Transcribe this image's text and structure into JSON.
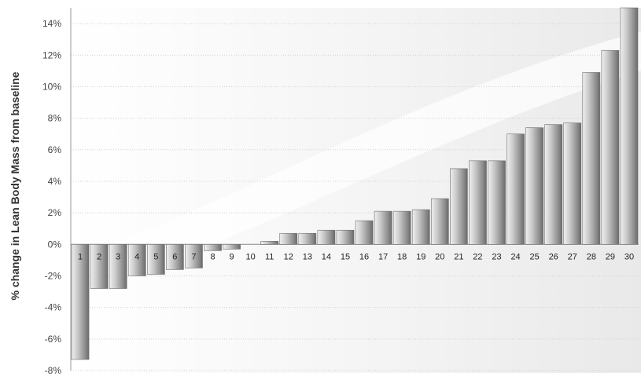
{
  "chart_data": {
    "type": "bar",
    "title": "",
    "xlabel": "",
    "ylabel": "% change in Lean Body Mass from baseline",
    "ylim": [
      -8,
      15
    ],
    "yticks": [
      -8,
      -6,
      -4,
      -2,
      0,
      2,
      4,
      6,
      8,
      10,
      12,
      14
    ],
    "ytick_labels": [
      "-8%",
      "-6%",
      "-4%",
      "-2%",
      "0%",
      "2%",
      "4%",
      "6%",
      "8%",
      "10%",
      "12%",
      "14%"
    ],
    "categories": [
      "1",
      "2",
      "3",
      "4",
      "5",
      "6",
      "7",
      "8",
      "9",
      "10",
      "11",
      "12",
      "13",
      "14",
      "15",
      "16",
      "17",
      "18",
      "19",
      "20",
      "21",
      "22",
      "23",
      "24",
      "25",
      "26",
      "27",
      "28",
      "29",
      "30"
    ],
    "values": [
      -7.3,
      -2.8,
      -2.8,
      -2.0,
      -1.9,
      -1.6,
      -1.5,
      -0.4,
      -0.3,
      0.0,
      0.2,
      0.7,
      0.7,
      0.9,
      0.9,
      1.5,
      2.1,
      2.1,
      2.2,
      2.9,
      4.8,
      5.3,
      5.3,
      7.0,
      7.4,
      7.6,
      7.7,
      10.9,
      12.3,
      15.0
    ],
    "grid": true,
    "legend": "none",
    "colors": {
      "bar_light": "#e4e4e4",
      "bar_dark": "#5c5c5c",
      "grid": "#cfcfcf",
      "axis": "#999999"
    }
  }
}
